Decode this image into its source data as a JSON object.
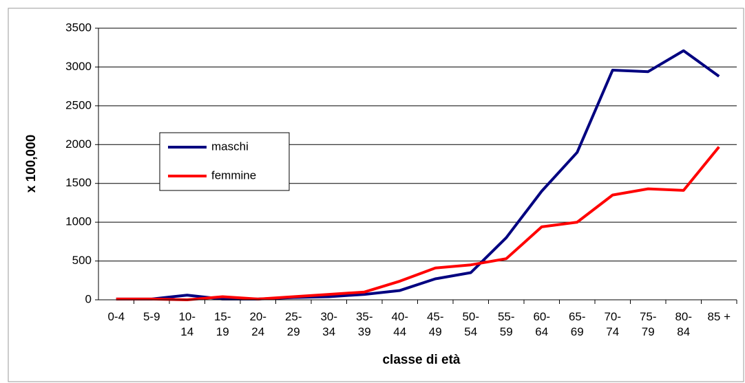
{
  "chart_data": {
    "type": "line",
    "x_label": "classe di età",
    "y_label": "x 100,000",
    "categories": [
      "0-4",
      "5-9",
      "10-\n14",
      "15-\n19",
      "20-\n24",
      "25-\n29",
      "30-\n34",
      "35-\n39",
      "40-\n44",
      "45-\n49",
      "50-\n54",
      "55-\n59",
      "60-\n64",
      "65-\n69",
      "70-\n74",
      "75-\n79",
      "80-\n84",
      "85 +"
    ],
    "series": [
      {
        "name": "maschi",
        "color": "#000080",
        "values": [
          10,
          10,
          60,
          10,
          10,
          30,
          40,
          70,
          120,
          270,
          350,
          800,
          1400,
          1900,
          2960,
          2940,
          3210,
          2880
        ]
      },
      {
        "name": "femmine",
        "color": "#ff0000",
        "values": [
          10,
          10,
          0,
          40,
          10,
          40,
          70,
          100,
          240,
          410,
          450,
          530,
          940,
          1000,
          1350,
          1430,
          1410,
          1970
        ]
      }
    ],
    "ylim": [
      0,
      3500
    ],
    "yticks": [
      0,
      500,
      1000,
      1500,
      2000,
      2500,
      3000,
      3500
    ],
    "grid": true
  }
}
